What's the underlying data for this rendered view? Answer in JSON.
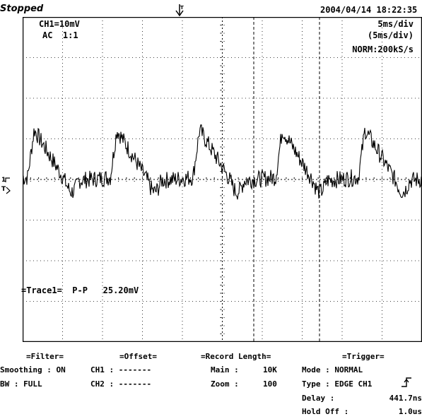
{
  "status": {
    "state": "Stopped",
    "date": "2004/04/14",
    "time": "18:22:35"
  },
  "channel": {
    "scale": "CH1=10mV",
    "coupling": "AC  1:1"
  },
  "timebase": {
    "time_div": "5ms/div",
    "time_div_paren": "(5ms/div)",
    "mode_rate": "NORM:200kS/s"
  },
  "measurement": {
    "label": "=Trace1=",
    "type": "P-P",
    "value": "25.20mV"
  },
  "panels": {
    "filter": {
      "title": "=Filter=",
      "smoothing_label": "Smoothing : ON",
      "bw_label": "BW : FULL"
    },
    "offset": {
      "title": "=Offset=",
      "ch1": "CH1 : -------",
      "ch2": "CH2 : -------"
    },
    "record": {
      "title": "=Record Length=",
      "main_label": "Main :",
      "main_value": "10K",
      "zoom_label": "Zoom :",
      "zoom_value": "100"
    },
    "trigger": {
      "title": "=Trigger=",
      "mode": "Mode : NORMAL",
      "type": "Type : EDGE CH1",
      "delay_label": "Delay :",
      "delay_value": "441.7ns",
      "holdoff_label": "Hold Off :",
      "holdoff_value": "1.0us"
    }
  },
  "colors": {
    "trace": "#000000",
    "grid": "#000000",
    "background": "#ffffff"
  }
}
